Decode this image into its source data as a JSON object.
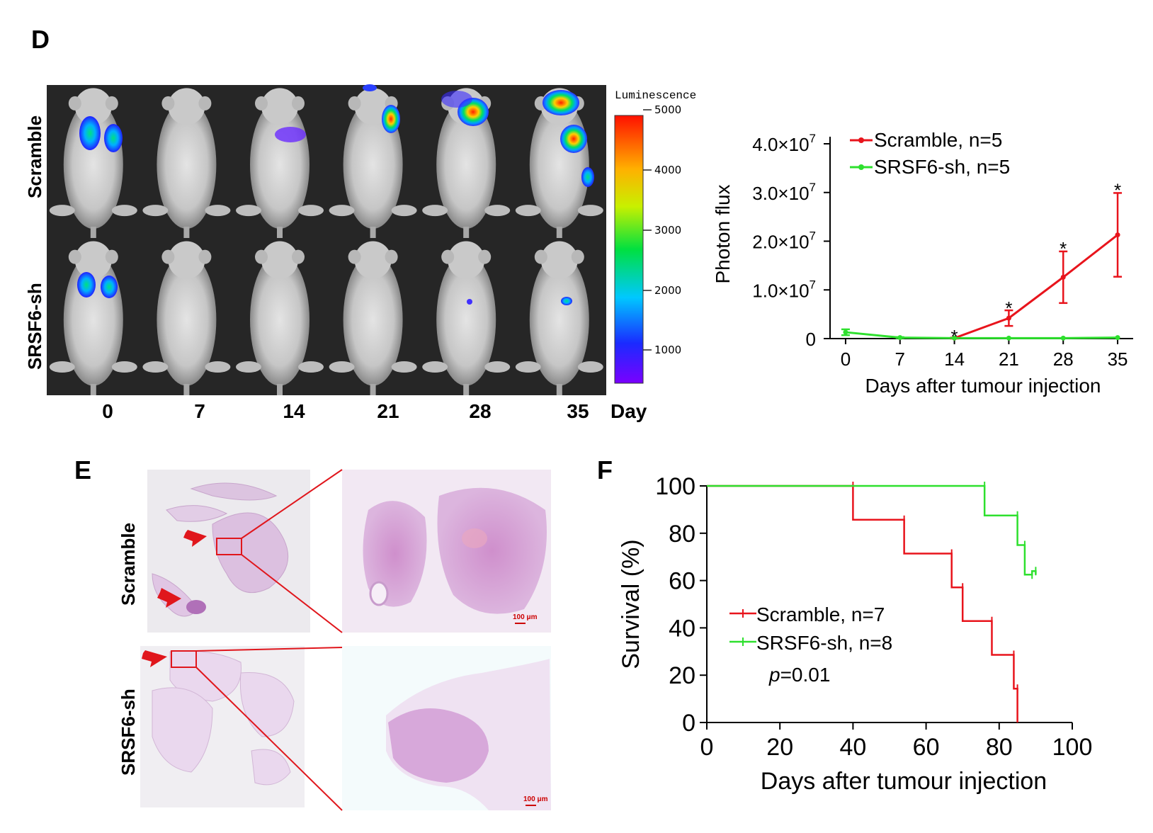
{
  "panels": {
    "D": "D",
    "E": "E",
    "F": "F"
  },
  "imaging": {
    "row_labels": [
      "Scramble",
      "SRSF6-sh"
    ],
    "days": [
      "0",
      "7",
      "14",
      "21",
      "28",
      "35"
    ],
    "day_unit": "Day",
    "colorbar_title": "Luminescence",
    "colorbar_ticks": [
      "5000",
      "4000",
      "3000",
      "2000",
      "1000"
    ]
  },
  "histology": {
    "row_labels": [
      "Scramble",
      "SRSF6-sh"
    ],
    "scale_bar": "100 μm"
  },
  "chart_data": [
    {
      "type": "line",
      "panel": "D",
      "xlabel": "Days after tumour injection",
      "ylabel": "Photon flux",
      "x": [
        0,
        7,
        14,
        21,
        28,
        35
      ],
      "x_ticks": [
        "0",
        "7",
        "14",
        "21",
        "28",
        "35"
      ],
      "y_ticks": [
        {
          "value": 0,
          "label": "0"
        },
        {
          "value": 10000000,
          "label": "1.0×10",
          "exp": "7"
        },
        {
          "value": 20000000,
          "label": "2.0×10",
          "exp": "7"
        },
        {
          "value": 30000000,
          "label": "3.0×10",
          "exp": "7"
        },
        {
          "value": 40000000,
          "label": "4.0×10",
          "exp": "7"
        }
      ],
      "ylim": [
        0,
        40000000
      ],
      "xlim": [
        -2,
        37
      ],
      "series": [
        {
          "name": "Scramble, n=5",
          "color": "#e8141c",
          "x": [
            14,
            21,
            28,
            35
          ],
          "values": [
            100000,
            4200000,
            12600000,
            21300000
          ],
          "errors": [
            100000,
            1600000,
            5300000,
            8600000
          ]
        },
        {
          "name": "SRSF6-sh, n=5",
          "color": "#2ee02e",
          "x": [
            0,
            7,
            14,
            21,
            28,
            35
          ],
          "values": [
            1300000,
            200000,
            100000,
            100000,
            100000,
            200000
          ],
          "errors": [
            600000,
            100000,
            0,
            0,
            0,
            0
          ]
        }
      ],
      "annotations": [
        {
          "x": 14,
          "y": 1200000,
          "text": "*"
        },
        {
          "x": 21,
          "y": 7000000,
          "text": "*"
        },
        {
          "x": 28,
          "y": 19200000,
          "text": "*"
        },
        {
          "x": 35,
          "y": 31200000,
          "text": "*"
        }
      ]
    },
    {
      "type": "line",
      "panel": "F",
      "step": true,
      "xlabel": "Days after tumour injection",
      "ylabel": "Survival (%)",
      "x_ticks": [
        "0",
        "20",
        "40",
        "60",
        "80",
        "100"
      ],
      "y_ticks": [
        "0",
        "20",
        "40",
        "60",
        "80",
        "100"
      ],
      "xlim": [
        0,
        100
      ],
      "ylim": [
        0,
        100
      ],
      "series": [
        {
          "name": "Scramble, n=7",
          "color": "#e8141c",
          "x": [
            0,
            40,
            54,
            67,
            70,
            78,
            84,
            85
          ],
          "values": [
            100,
            85.7,
            71.4,
            57.1,
            42.9,
            28.6,
            14.3,
            0
          ]
        },
        {
          "name": "SRSF6-sh, n=8",
          "color": "#2ee02e",
          "x": [
            0,
            76,
            85,
            87,
            89,
            90
          ],
          "values": [
            100,
            87.5,
            75,
            62.5,
            64,
            62.5
          ]
        }
      ],
      "annotation": {
        "italic": "p",
        "rest": "=0.01"
      }
    }
  ]
}
